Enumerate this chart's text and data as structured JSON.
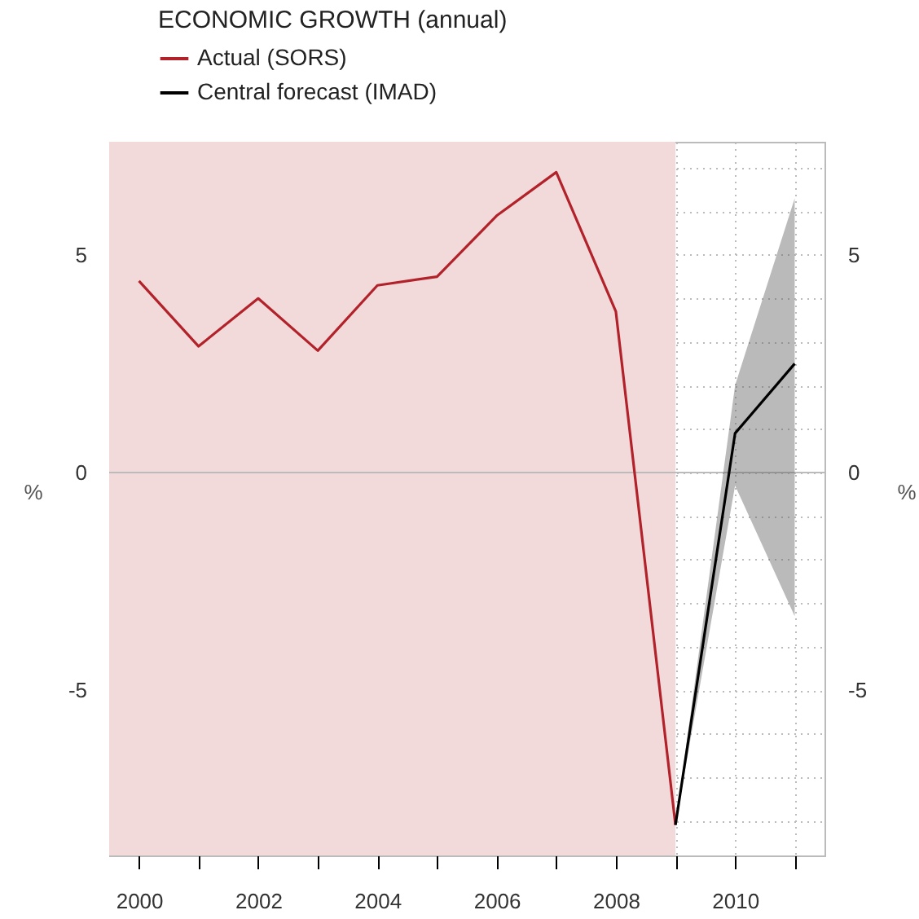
{
  "chart_data": {
    "type": "line",
    "title": "ECONOMIC GROWTH (annual)",
    "ylabel": "%",
    "y2label": "%",
    "x": [
      2000,
      2001,
      2002,
      2003,
      2004,
      2005,
      2006,
      2007,
      2008,
      2009
    ],
    "series": [
      {
        "name": "Actual (SORS)",
        "color": "#b2222a",
        "values": [
          4.4,
          2.9,
          4.0,
          2.8,
          4.3,
          4.5,
          5.9,
          6.9,
          3.7,
          -8.1
        ]
      },
      {
        "name": "Central forecast (IMAD)",
        "color": "#000000",
        "x": [
          2009,
          2010,
          2011
        ],
        "values": [
          -8.1,
          0.9,
          2.5
        ],
        "lower": [
          -8.1,
          -0.3,
          -3.3
        ],
        "upper": [
          -8.1,
          2.0,
          6.3
        ]
      }
    ],
    "xlim": [
      1999.5,
      2011.5
    ],
    "xticks": [
      2000,
      {
        "value": 2001,
        "label": null
      },
      2002,
      {
        "value": 2003,
        "label": null
      },
      2004,
      {
        "value": 2005,
        "label": null
      },
      2006,
      {
        "value": 2007,
        "label": null
      },
      2008,
      {
        "value": 2009,
        "label": null
      },
      2010,
      {
        "value": 2011,
        "label": null
      }
    ],
    "ylim": [
      -8.8,
      7.6
    ],
    "yticks": [
      {
        "value": -8,
        "label": null
      },
      {
        "value": -7,
        "label": null
      },
      {
        "value": -6,
        "label": null
      },
      -5,
      {
        "value": -4,
        "label": null
      },
      {
        "value": -3,
        "label": null
      },
      {
        "value": -2,
        "label": null
      },
      {
        "value": -1,
        "label": null
      },
      0,
      {
        "value": 1,
        "label": null
      },
      {
        "value": 2,
        "label": null
      },
      {
        "value": 3,
        "label": null
      },
      {
        "value": 4,
        "label": null
      },
      5,
      {
        "value": 6,
        "label": null
      },
      {
        "value": 7,
        "label": null
      }
    ],
    "y2lim": [
      -8.8,
      7.6
    ],
    "y2ticks": [
      -5,
      0,
      5
    ],
    "bands": [
      {
        "axis": "x",
        "from": 1999.5,
        "to": 2009,
        "color": "#f2dadb"
      }
    ],
    "ref_lines": [
      {
        "axis": "y",
        "value": 0,
        "color": "#bbbbbb"
      }
    ],
    "grid": true,
    "legend": "top left",
    "marker": "none",
    "line_style": "solid"
  }
}
